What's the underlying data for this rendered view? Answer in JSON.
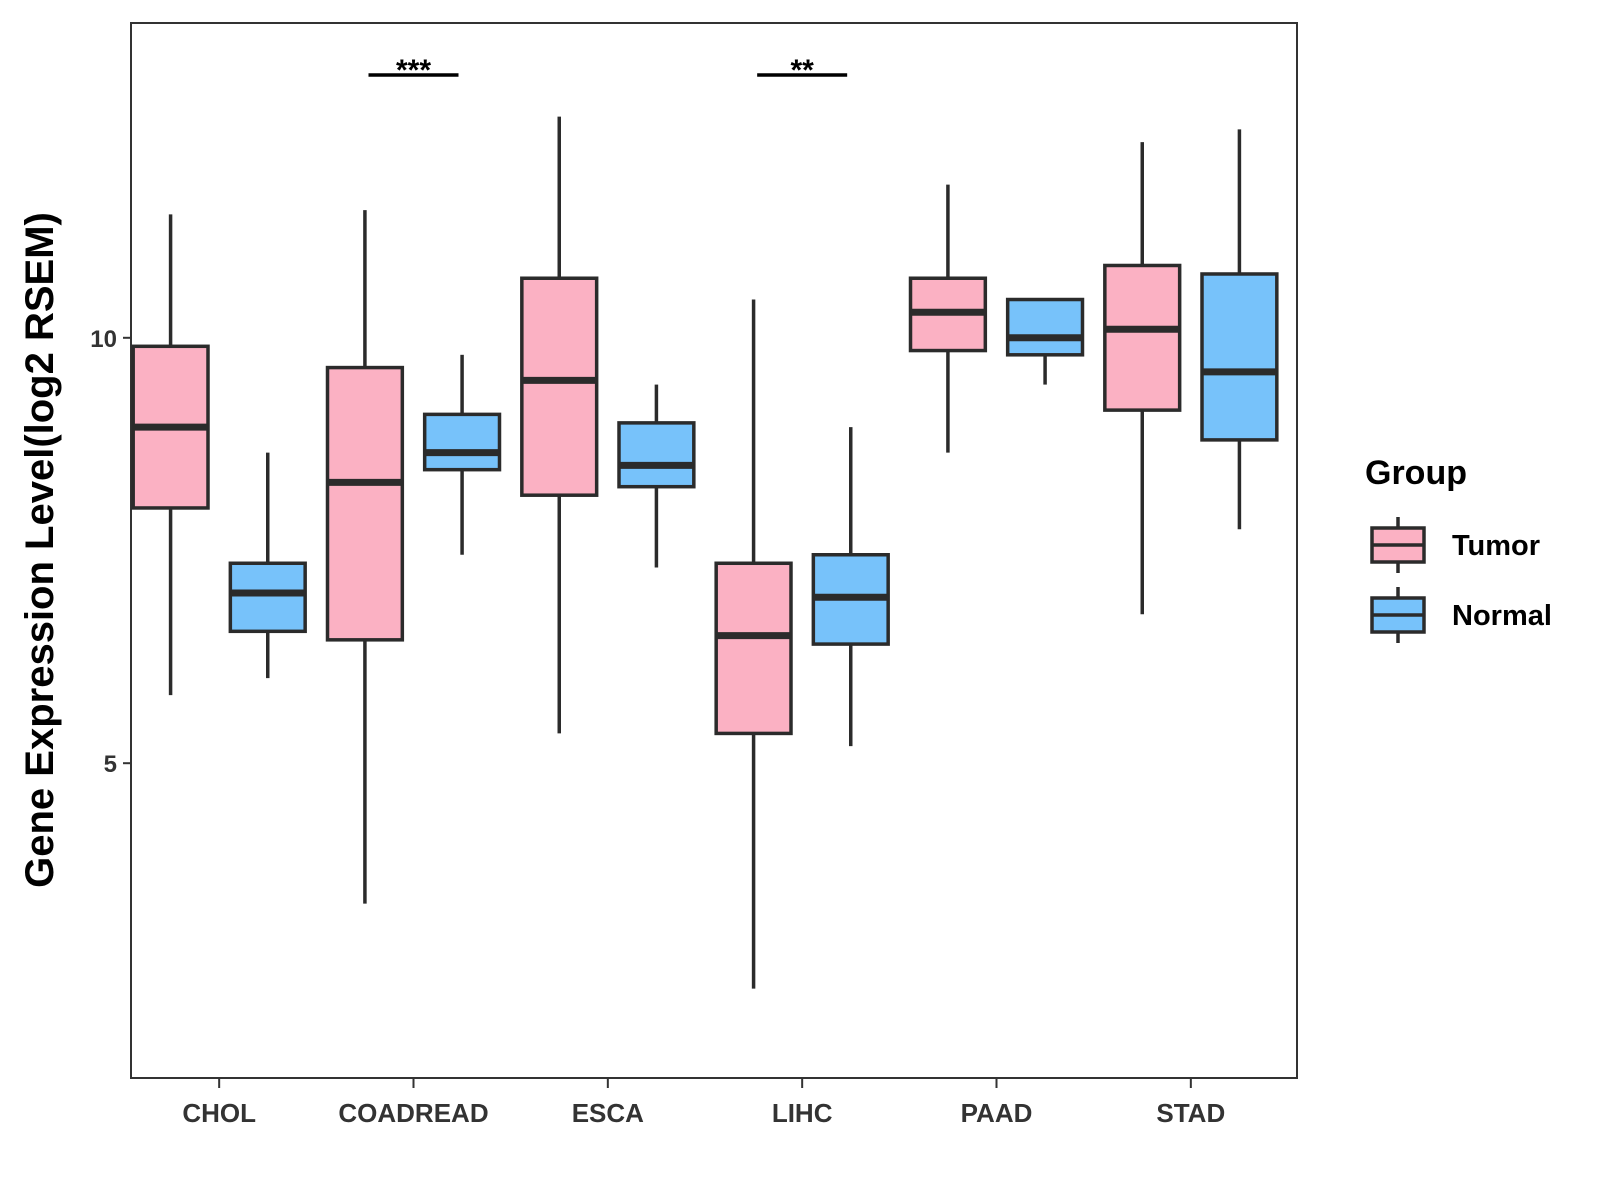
{
  "chart_data": {
    "type": "box",
    "ylabel": "Gene Expression Level(log2 RSEM)",
    "xlabel": "",
    "title": "",
    "ylim": [
      1.3,
      13.7
    ],
    "yticks": [
      5,
      10
    ],
    "grid": false,
    "legend_position": "right",
    "legend": {
      "title": "Group",
      "items": [
        {
          "name": "Tumor",
          "color": "#FBB1C3"
        },
        {
          "name": "Normal",
          "color": "#77C2FA"
        }
      ]
    },
    "categories": [
      "CHOL",
      "COADREAD",
      "ESCA",
      "LIHC",
      "PAAD",
      "STAD"
    ],
    "series": [
      {
        "name": "Tumor",
        "color": "#FBB1C3",
        "boxes": [
          {
            "whisker_low": 5.8,
            "q1": 8.0,
            "median": 8.95,
            "q3": 9.9,
            "whisker_high": 11.45
          },
          {
            "whisker_low": 3.35,
            "q1": 6.45,
            "median": 8.3,
            "q3": 9.65,
            "whisker_high": 11.5
          },
          {
            "whisker_low": 5.35,
            "q1": 8.15,
            "median": 9.5,
            "q3": 10.7,
            "whisker_high": 12.6
          },
          {
            "whisker_low": 2.35,
            "q1": 5.35,
            "median": 6.5,
            "q3": 7.35,
            "whisker_high": 10.45
          },
          {
            "whisker_low": 8.65,
            "q1": 9.85,
            "median": 10.3,
            "q3": 10.7,
            "whisker_high": 11.8
          },
          {
            "whisker_low": 6.75,
            "q1": 9.15,
            "median": 10.1,
            "q3": 10.85,
            "whisker_high": 12.3
          }
        ]
      },
      {
        "name": "Normal",
        "color": "#77C2FA",
        "boxes": [
          {
            "whisker_low": 6.0,
            "q1": 6.55,
            "median": 7.0,
            "q3": 7.35,
            "whisker_high": 8.65
          },
          {
            "whisker_low": 7.45,
            "q1": 8.45,
            "median": 8.65,
            "q3": 9.1,
            "whisker_high": 9.8
          },
          {
            "whisker_low": 7.3,
            "q1": 8.25,
            "median": 8.5,
            "q3": 9.0,
            "whisker_high": 9.45
          },
          {
            "whisker_low": 5.2,
            "q1": 6.4,
            "median": 6.95,
            "q3": 7.45,
            "whisker_high": 8.95
          },
          {
            "whisker_low": 9.45,
            "q1": 9.8,
            "median": 10.0,
            "q3": 10.45,
            "whisker_high": 10.45
          },
          {
            "whisker_low": 7.75,
            "q1": 8.8,
            "median": 9.6,
            "q3": 10.75,
            "whisker_high": 12.45
          }
        ]
      }
    ],
    "annotations": [
      {
        "category": "COADREAD",
        "text": "***"
      },
      {
        "category": "LIHC",
        "text": "**"
      }
    ]
  }
}
